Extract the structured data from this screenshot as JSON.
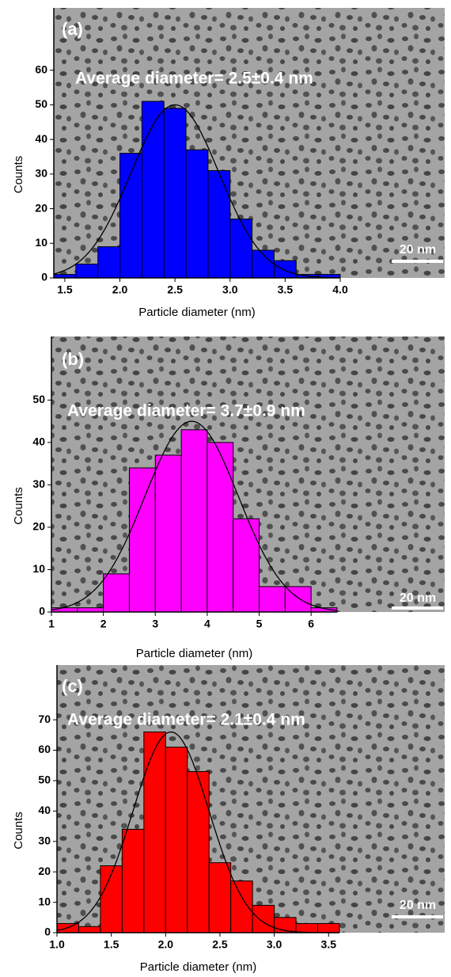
{
  "chart_data": [
    {
      "type": "histogram",
      "label": "(a)",
      "annotation": "Average diameter= 2.5±0.4 nm",
      "scale_bar": "20 nm",
      "xlabel": "Particle diameter (nm)",
      "ylabel": "Counts",
      "color": "#0000ff",
      "bins": [
        1.4,
        1.6,
        1.8,
        2.0,
        2.2,
        2.4,
        2.6,
        2.8,
        3.0,
        3.2,
        3.4,
        3.6,
        3.8,
        4.0
      ],
      "counts": [
        1,
        4,
        9,
        36,
        51,
        49,
        37,
        31,
        17,
        8,
        5,
        1,
        1
      ],
      "xlim": [
        1.4,
        4.0
      ],
      "ylim": [
        0,
        78
      ],
      "xticks": [
        1.5,
        {
          "value": 2,
          "label": "2.0"
        },
        2.5,
        {
          "value": 3,
          "label": "3.0"
        },
        3.5,
        {
          "value": 4,
          "label": "4.0"
        }
      ],
      "yticks": [
        0,
        10,
        20,
        30,
        40,
        50,
        60
      ],
      "fit": {
        "mean": 2.5,
        "sd": 0.4,
        "peak": 50
      }
    },
    {
      "type": "histogram",
      "label": "(b)",
      "annotation": "Average diameter= 3.7±0.9 nm",
      "scale_bar": "20 nm",
      "xlabel": "Particle diameter (nm)",
      "ylabel": "Counts",
      "color": "#ff00ff",
      "bins": [
        1,
        1.5,
        2,
        2.5,
        3,
        3.5,
        4,
        4.5,
        5,
        5.5,
        6,
        6.5
      ],
      "counts": [
        1,
        1,
        9,
        34,
        37,
        43,
        40,
        22,
        6,
        6,
        1
      ],
      "xlim": [
        1,
        6.5
      ],
      "ylim": [
        0,
        65
      ],
      "xticks": [
        1,
        2,
        3,
        4,
        5,
        6
      ],
      "yticks": [
        0,
        10,
        20,
        30,
        40,
        50
      ],
      "fit": {
        "mean": 3.7,
        "sd": 0.9,
        "peak": 45
      }
    },
    {
      "type": "histogram",
      "label": "(c)",
      "annotation": "Average diameter= 2.1±0.4 nm",
      "scale_bar": "20 nm",
      "xlabel": "Particle diameter (nm)",
      "ylabel": "Counts",
      "color": "#ff0000",
      "bins": [
        1.0,
        1.2,
        1.4,
        1.6,
        1.8,
        2.0,
        2.2,
        2.4,
        2.6,
        2.8,
        3.0,
        3.2,
        3.4,
        3.6
      ],
      "counts": [
        3,
        2,
        22,
        34,
        66,
        61,
        53,
        23,
        17,
        9,
        5,
        3,
        3
      ],
      "xlim": [
        1.0,
        3.6
      ],
      "ylim": [
        0,
        88
      ],
      "xticks": [
        {
          "value": 1,
          "label": "1.0"
        },
        1.5,
        {
          "value": 2,
          "label": "2.0"
        },
        2.5,
        {
          "value": 3,
          "label": "3.0"
        },
        3.5
      ],
      "yticks": [
        0,
        10,
        20,
        30,
        40,
        50,
        60,
        70
      ],
      "fit": {
        "mean": 2.05,
        "sd": 0.35,
        "peak": 66
      }
    }
  ]
}
